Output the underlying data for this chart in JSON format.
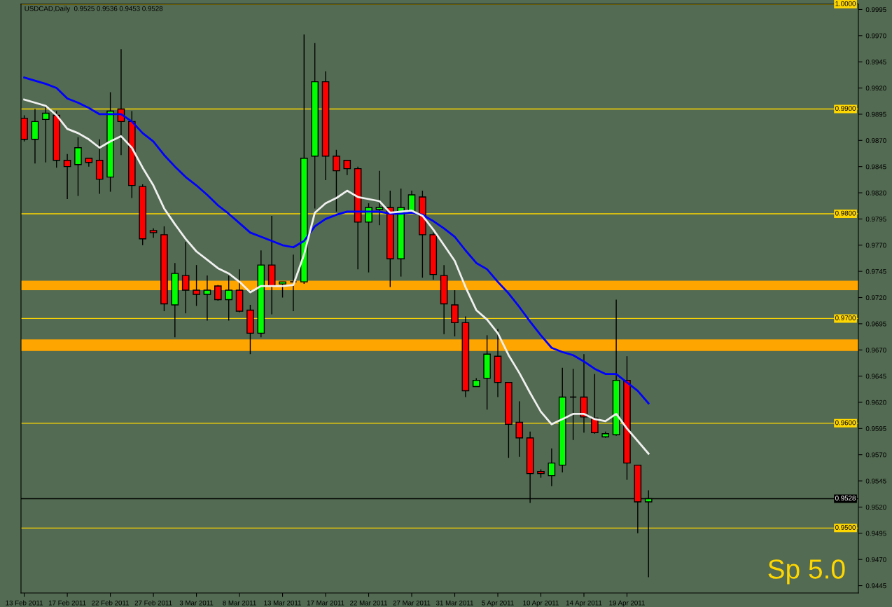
{
  "chart_data": {
    "type": "candlestick",
    "title": "USDCAD,Daily  0.9525 0.9536 0.9453 0.9528",
    "annotations": [
      "Sp 5.0"
    ],
    "categories": [
      "13 Feb 2011",
      null,
      null,
      null,
      "17 Feb 2011",
      null,
      null,
      null,
      "22 Feb 2011",
      null,
      null,
      null,
      "27 Feb 2011",
      null,
      null,
      null,
      "3 Mar 2011",
      null,
      null,
      null,
      "8 Mar 2011",
      null,
      null,
      null,
      "13 Mar 2011",
      null,
      null,
      null,
      "17 Mar 2011",
      null,
      null,
      null,
      "22 Mar 2011",
      null,
      null,
      null,
      "27 Mar 2011",
      null,
      null,
      null,
      "31 Mar 2011",
      null,
      null,
      null,
      "5 Apr 2011",
      null,
      null,
      null,
      "10 Apr 2011",
      null,
      null,
      null,
      "14 Apr 2011",
      null,
      null,
      null,
      "19 Apr 2011",
      null,
      null,
      null,
      null,
      null,
      null,
      null,
      null,
      null,
      null,
      null,
      null,
      null,
      null,
      null,
      null,
      null,
      null,
      null,
      null,
      null
    ],
    "ohlc": [
      [
        0.9891,
        0.9894,
        0.9869,
        0.9871
      ],
      [
        0.9871,
        0.99,
        0.9848,
        0.9888
      ],
      [
        0.989,
        0.9902,
        0.9849,
        0.9896
      ],
      [
        0.9894,
        0.9898,
        0.9844,
        0.9851
      ],
      [
        0.9851,
        0.9857,
        0.9814,
        0.9845
      ],
      [
        0.9847,
        0.9873,
        0.9817,
        0.9863
      ],
      [
        0.9853,
        0.9853,
        0.9845,
        0.9849
      ],
      [
        0.9851,
        0.9871,
        0.9819,
        0.9833
      ],
      [
        0.9835,
        0.9916,
        0.9821,
        0.9898
      ],
      [
        0.99,
        0.9957,
        0.9856,
        0.9888
      ],
      [
        0.9888,
        0.9898,
        0.9815,
        0.9827
      ],
      [
        0.9826,
        0.9828,
        0.977,
        0.9776
      ],
      [
        0.9784,
        0.9786,
        0.9777,
        0.9782
      ],
      [
        0.978,
        0.9788,
        0.9707,
        0.9714
      ],
      [
        0.9713,
        0.9753,
        0.9682,
        0.9743
      ],
      [
        0.9741,
        0.9773,
        0.9705,
        0.9727
      ],
      [
        0.9727,
        0.9751,
        0.9712,
        0.9723
      ],
      [
        0.9723,
        0.9741,
        0.9698,
        0.9727
      ],
      [
        0.9731,
        0.9732,
        0.9717,
        0.9718
      ],
      [
        0.9718,
        0.9741,
        0.9698,
        0.9727
      ],
      [
        0.9727,
        0.9747,
        0.9706,
        0.9707
      ],
      [
        0.9708,
        0.9713,
        0.9666,
        0.9686
      ],
      [
        0.9686,
        0.9765,
        0.9682,
        0.9751
      ],
      [
        0.9751,
        0.9798,
        0.9704,
        0.9731
      ],
      [
        0.9733,
        0.9735,
        0.972,
        0.9735
      ],
      [
        0.9735,
        0.9761,
        0.9707,
        0.9735
      ],
      [
        0.9735,
        0.9971,
        0.9733,
        0.9853
      ],
      [
        0.9855,
        0.9963,
        0.9805,
        0.9926
      ],
      [
        0.9926,
        0.9936,
        0.9832,
        0.9855
      ],
      [
        0.9855,
        0.9861,
        0.9802,
        0.9841
      ],
      [
        0.9851,
        0.9851,
        0.9837,
        0.9843
      ],
      [
        0.9843,
        0.9845,
        0.9747,
        0.9792
      ],
      [
        0.9792,
        0.981,
        0.9744,
        0.9806
      ],
      [
        0.9804,
        0.9841,
        0.9789,
        0.9806
      ],
      [
        0.9806,
        0.9822,
        0.973,
        0.9757
      ],
      [
        0.9757,
        0.9824,
        0.974,
        0.9806
      ],
      [
        0.9802,
        0.9822,
        0.9801,
        0.9818
      ],
      [
        0.9816,
        0.9822,
        0.9739,
        0.978
      ],
      [
        0.978,
        0.9782,
        0.9737,
        0.9742
      ],
      [
        0.9741,
        0.9751,
        0.9685,
        0.9714
      ],
      [
        0.9713,
        0.9727,
        0.9683,
        0.9696
      ],
      [
        0.9696,
        0.9702,
        0.9625,
        0.9631
      ],
      [
        0.9635,
        0.9643,
        0.9635,
        0.9641
      ],
      [
        0.9643,
        0.9684,
        0.9613,
        0.9666
      ],
      [
        0.9664,
        0.969,
        0.9625,
        0.9639
      ],
      [
        0.9639,
        0.9639,
        0.9567,
        0.9599
      ],
      [
        0.9601,
        0.9621,
        0.9568,
        0.9586
      ],
      [
        0.9586,
        0.9592,
        0.9524,
        0.9552
      ],
      [
        0.9554,
        0.9556,
        0.9548,
        0.9552
      ],
      [
        0.955,
        0.9576,
        0.954,
        0.9562
      ],
      [
        0.956,
        0.9653,
        0.9553,
        0.9625
      ],
      [
        0.9625,
        0.9652,
        0.9584,
        0.9625
      ],
      [
        0.9625,
        0.9666,
        0.9591,
        0.9606
      ],
      [
        0.9605,
        0.9647,
        0.959,
        0.9591
      ],
      [
        0.9587,
        0.9592,
        0.9586,
        0.959
      ],
      [
        0.9589,
        0.9718,
        0.9588,
        0.9641
      ],
      [
        0.9641,
        0.9664,
        0.9546,
        0.9562
      ],
      [
        0.956,
        0.956,
        0.9495,
        0.9525
      ],
      [
        0.9525,
        0.9536,
        0.9453,
        0.9528
      ],
      null,
      null,
      null,
      null,
      null,
      null,
      null,
      null,
      null,
      null,
      null,
      null,
      null,
      null,
      null,
      null,
      null,
      null,
      null
    ],
    "colors": [
      "#ff0000",
      "#00ff00",
      "#00ff00",
      "#ff0000",
      "#ff0000",
      "#00ff00",
      "#ff0000",
      "#ff0000",
      "#00ff00",
      "#ff0000",
      "#ff0000",
      "#ff0000",
      "#ff0000",
      "#ff0000",
      "#00ff00",
      "#ff0000",
      "#ff0000",
      "#00ff00",
      "#ff0000",
      "#00ff00",
      "#ff0000",
      "#ff0000",
      "#00ff00",
      "#ff0000",
      "#00ff00",
      "#000000",
      "#00ff00",
      "#00ff00",
      "#ff0000",
      "#ff0000",
      "#ff0000",
      "#ff0000",
      "#00ff00",
      "#00ff00",
      "#ff0000",
      "#00ff00",
      "#00ff00",
      "#ff0000",
      "#ff0000",
      "#ff0000",
      "#ff0000",
      "#ff0000",
      "#00ff00",
      "#00ff00",
      "#ff0000",
      "#ff0000",
      "#ff0000",
      "#ff0000",
      "#ff0000",
      "#00ff00",
      "#00ff00",
      "#000000",
      "#ff0000",
      "#ff0000",
      "#00ff00",
      "#00ff00",
      "#ff0000",
      "#ff0000",
      "#00ff00",
      null,
      null,
      null,
      null,
      null,
      null,
      null,
      null,
      null,
      null,
      null,
      null,
      null,
      null,
      null,
      null,
      null,
      null,
      null
    ],
    "series": [
      {
        "type": "line",
        "color": "#0000ff",
        "values": [
          0.993,
          0.9927,
          0.9924,
          0.992,
          0.991,
          0.9906,
          0.9901,
          0.9895,
          0.9895,
          0.9895,
          0.9888,
          0.9877,
          0.9869,
          0.9856,
          0.9845,
          0.9835,
          0.9827,
          0.9818,
          0.9808,
          0.98,
          0.9791,
          0.9782,
          0.9778,
          0.9774,
          0.977,
          0.9768,
          0.9774,
          0.9788,
          0.9795,
          0.9799,
          0.9802,
          0.9802,
          0.9802,
          0.9802,
          0.98,
          0.98,
          0.9801,
          0.9799,
          0.9793,
          0.9786,
          0.9778,
          0.9765,
          0.9753,
          0.9747,
          0.9735,
          0.9724,
          0.9711,
          0.9697,
          0.9684,
          0.9672,
          0.9668,
          0.9665,
          0.9659,
          0.9652,
          0.9647,
          0.9647,
          0.9639,
          0.9631,
          0.9619,
          null,
          null,
          null,
          null,
          null,
          null,
          null,
          null,
          null,
          null,
          null,
          null,
          null,
          null,
          null,
          null,
          null,
          null,
          null
        ]
      },
      {
        "type": "line",
        "color": "#f0f0f0",
        "values": [
          0.9909,
          0.9906,
          0.9903,
          0.9894,
          0.9881,
          0.9877,
          0.9871,
          0.9863,
          0.9869,
          0.9874,
          0.9863,
          0.9844,
          0.9827,
          0.9805,
          0.979,
          0.9776,
          0.9764,
          0.9756,
          0.9748,
          0.9743,
          0.9735,
          0.9725,
          0.9731,
          0.9731,
          0.9731,
          0.9732,
          0.9761,
          0.9801,
          0.981,
          0.9815,
          0.9822,
          0.9816,
          0.9814,
          0.9812,
          0.9801,
          0.9802,
          0.9803,
          0.9798,
          0.9785,
          0.977,
          0.9755,
          0.973,
          0.9708,
          0.9699,
          0.9686,
          0.9665,
          0.9648,
          0.9629,
          0.9611,
          0.9599,
          0.9604,
          0.9609,
          0.9609,
          0.9604,
          0.9602,
          0.9609,
          0.9595,
          0.9583,
          0.9571,
          null,
          null,
          null,
          null,
          null,
          null,
          null,
          null,
          null,
          null,
          null,
          null,
          null,
          null,
          null,
          null,
          null,
          null,
          null
        ]
      }
    ],
    "ylim": [
      0.9438,
      1.0
    ],
    "yticks": [
      0.9445,
      {
        "value": 0.947,
        "label": "0.9470"
      },
      0.9495,
      {
        "value": 0.952,
        "label": "0.9520"
      },
      0.9545,
      {
        "value": 0.957,
        "label": "0.9570"
      },
      0.9595,
      {
        "value": 0.962,
        "label": "0.9620"
      },
      0.9645,
      {
        "value": 0.967,
        "label": "0.9670"
      },
      0.9695,
      {
        "value": 0.972,
        "label": "0.9720"
      },
      0.9745,
      {
        "value": 0.977,
        "label": "0.9770"
      },
      0.9795,
      {
        "value": 0.982,
        "label": "0.9820"
      },
      0.9845,
      {
        "value": 0.987,
        "label": "0.9870"
      },
      0.9895,
      {
        "value": 0.992,
        "label": "0.9920"
      },
      0.9945,
      {
        "value": 0.997,
        "label": "0.9970"
      },
      0.9995
    ],
    "ref_lines": [
      {
        "axis": "y",
        "value": 1.0,
        "label": "1.0000",
        "color": "#ffd700"
      },
      {
        "axis": "y",
        "value": 0.99,
        "label": "0.9900",
        "color": "#ffd700"
      },
      {
        "axis": "y",
        "value": 0.98,
        "label": "0.9800",
        "color": "#ffd700"
      },
      {
        "axis": "y",
        "value": 0.97,
        "label": "0.9700",
        "color": "#ffd700"
      },
      {
        "axis": "y",
        "value": 0.96,
        "label": "0.9600",
        "color": "#ffd700"
      },
      {
        "axis": "y",
        "value": 0.95,
        "label": "0.9500",
        "color": "#ffd700"
      },
      {
        "axis": "y",
        "value": 0.9528,
        "label": "0.9528",
        "color": "#000000"
      }
    ],
    "bands": [
      {
        "axis": "y",
        "from": 0.9727,
        "to": 0.9736,
        "color": "#ffa500"
      },
      {
        "axis": "y",
        "from": 0.9669,
        "to": 0.968,
        "color": "#ffa500"
      }
    ],
    "grid": false,
    "legend": false
  }
}
